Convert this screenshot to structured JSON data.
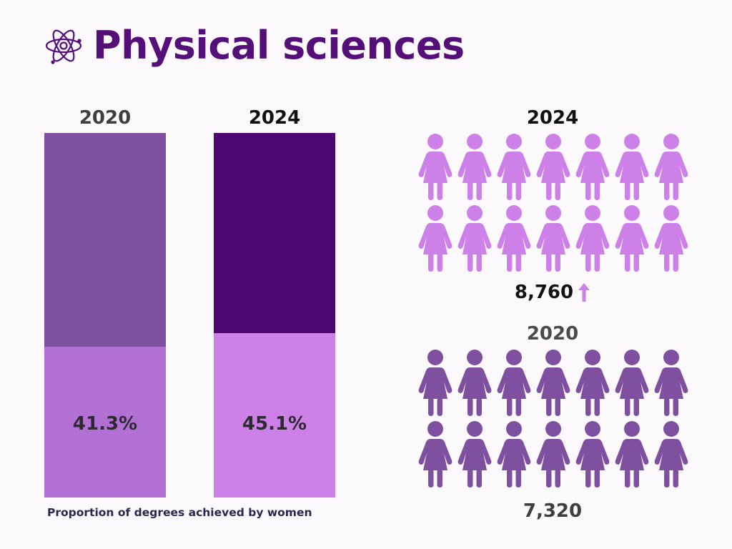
{
  "title": "Physical sciences",
  "colors": {
    "title": "#541078",
    "bar_2020_rest": "#8050a0",
    "bar_2020_women": "#b370d4",
    "bar_2024_rest": "#4e0670",
    "bar_2024_women": "#cd80e8",
    "people_2024": "#cd80e8",
    "people_2020": "#8050a0",
    "arrow": "#cd80e8"
  },
  "chart_data": [
    {
      "type": "bar",
      "categories": [
        "2020",
        "2024"
      ],
      "values": [
        41.3,
        45.1
      ],
      "value_labels": [
        "41.3%",
        "45.1%"
      ],
      "unit": "%",
      "xlabel": "Proportion of degrees achieved by women",
      "stacked": true,
      "ylim": [
        0,
        100
      ]
    },
    {
      "type": "pictograph",
      "series": [
        {
          "year": "2024",
          "value": 8760,
          "label": "8,760",
          "icons": 14,
          "trend": "up"
        },
        {
          "year": "2020",
          "value": 7320,
          "label": "7,320",
          "icons": 14
        }
      ]
    }
  ],
  "icons": {
    "title_icon": "atom-icon",
    "person_icon": "woman-icon",
    "trend_icon": "arrow-up-icon"
  }
}
